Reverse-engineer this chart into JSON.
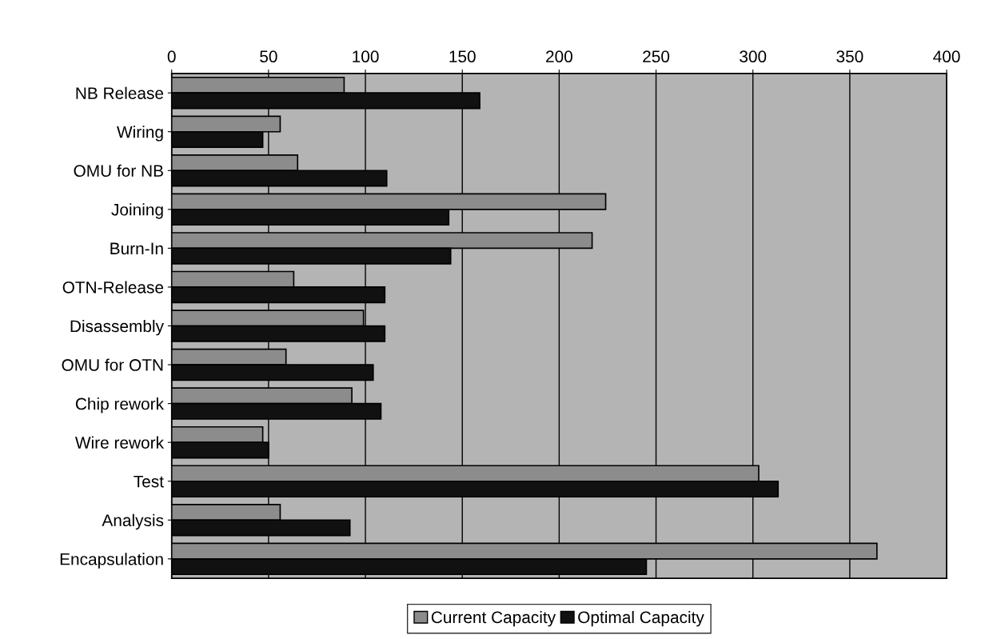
{
  "chart_data": {
    "type": "bar",
    "orientation": "horizontal",
    "categories": [
      "NB Release",
      "Wiring",
      "OMU for NB",
      "Joining",
      "Burn-In",
      "OTN-Release",
      "Disassembly",
      "OMU for OTN",
      "Chip rework",
      "Wire rework",
      "Test",
      "Analysis",
      "Encapsulation"
    ],
    "series": [
      {
        "name": "Current Capacity",
        "color": "#8c8c8c",
        "values": [
          89,
          56,
          65,
          224,
          217,
          63,
          99,
          59,
          93,
          47,
          303,
          56,
          364
        ]
      },
      {
        "name": "Optimal Capacity",
        "color": "#111111",
        "values": [
          159,
          47,
          111,
          143,
          144,
          110,
          110,
          104,
          108,
          50,
          313,
          92,
          245
        ]
      }
    ],
    "xlim": [
      0,
      400
    ],
    "xticks": [
      0,
      50,
      100,
      150,
      200,
      250,
      300,
      350,
      400
    ],
    "grid": "x",
    "legend": "bottom"
  }
}
